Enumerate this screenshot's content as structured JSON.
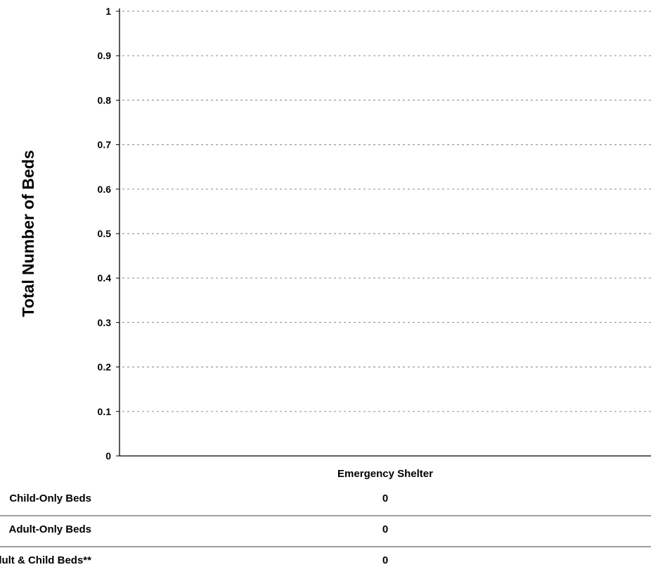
{
  "chart_data": {
    "type": "bar",
    "categories": [
      "Emergency Shelter"
    ],
    "series": [
      {
        "name": "Child-Only Beds",
        "values": [
          0
        ]
      },
      {
        "name": "Adult-Only Beds",
        "values": [
          0
        ]
      },
      {
        "name": "Adult & Child Beds**",
        "values": [
          0
        ]
      }
    ],
    "ylabel": "Total Number of Beds",
    "xlabel": "",
    "ylim": [
      0,
      1
    ],
    "yticks": [
      "0",
      "0.1",
      "0.2",
      "0.3",
      "0.4",
      "0.5",
      "0.6",
      "0.7",
      "0.8",
      "0.9",
      "1"
    ],
    "grid": true,
    "data_table": {
      "row_labels": [
        "Child-Only Beds",
        "Adult-Only Beds",
        "Adult & Child Beds**"
      ],
      "values": [
        [
          "0"
        ],
        [
          "0"
        ],
        [
          "0"
        ]
      ]
    }
  },
  "colors": {
    "gridline": "#999999",
    "axis": "#000000",
    "table_rule": "#7f7f7f"
  }
}
